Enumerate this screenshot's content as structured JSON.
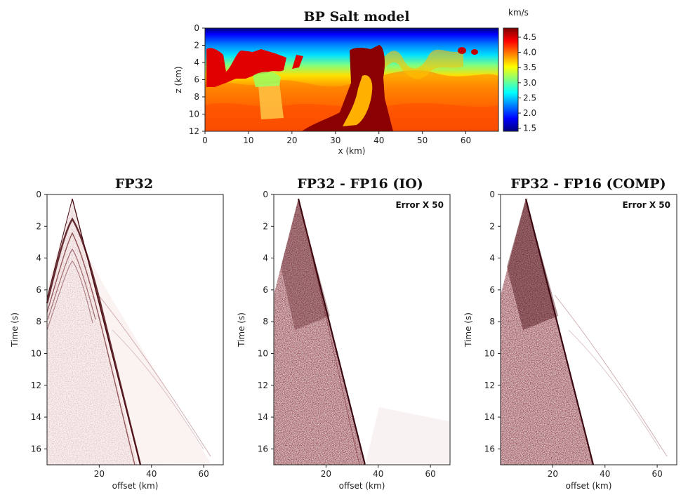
{
  "chart_data": [
    {
      "id": "model",
      "type": "heatmap",
      "title": "BP Salt model",
      "xlabel": "x (km)",
      "ylabel": "z (km)",
      "xlim": [
        0,
        67.5
      ],
      "ylim": [
        12,
        0
      ],
      "xticks": [
        0,
        10,
        20,
        30,
        40,
        50,
        60
      ],
      "yticks": [
        0,
        2,
        4,
        6,
        8,
        10,
        12
      ],
      "colormap": "jet",
      "colorbar": {
        "label": "km/s",
        "range": [
          1.4,
          4.8
        ],
        "ticks": [
          "1.5",
          "2.0",
          "2.5",
          "3.0",
          "3.5",
          "4.0",
          "4.5"
        ]
      }
    },
    {
      "id": "fp32",
      "type": "heatmap",
      "title": "FP32",
      "xlabel": "offset (km)",
      "ylabel": "Time (s)",
      "xlim": [
        0,
        67.5
      ],
      "ylim": [
        17,
        0
      ],
      "xticks": [
        20,
        40,
        60
      ],
      "yticks": [
        0,
        2,
        4,
        6,
        8,
        10,
        12,
        14,
        16
      ],
      "source_offset_km": 10,
      "direct_wave_slope_km_per_s": 1.5,
      "annotation": ""
    },
    {
      "id": "io",
      "type": "heatmap",
      "title": "FP32 - FP16 (IO)",
      "xlabel": "offset (km)",
      "ylabel": "Time (s)",
      "xlim": [
        0,
        67.5
      ],
      "ylim": [
        17,
        0
      ],
      "xticks": [
        20,
        40,
        60
      ],
      "yticks": [
        0,
        2,
        4,
        6,
        8,
        10,
        12,
        14,
        16
      ],
      "source_offset_km": 10,
      "annotation": "Error X 50"
    },
    {
      "id": "comp",
      "type": "heatmap",
      "title": "FP32 - FP16 (COMP)",
      "xlabel": "offset (km)",
      "ylabel": "Time (s)",
      "xlim": [
        0,
        67.5
      ],
      "ylim": [
        17,
        0
      ],
      "xticks": [
        20,
        40,
        60
      ],
      "yticks": [
        0,
        2,
        4,
        6,
        8,
        10,
        12,
        14,
        16
      ],
      "source_offset_km": 10,
      "annotation": "Error X 50"
    }
  ],
  "colors": {
    "seismic_dark": "#4a0c12",
    "seismic_mid": "#9b4a52",
    "salt": "#7a0000",
    "axis": "#222222"
  }
}
